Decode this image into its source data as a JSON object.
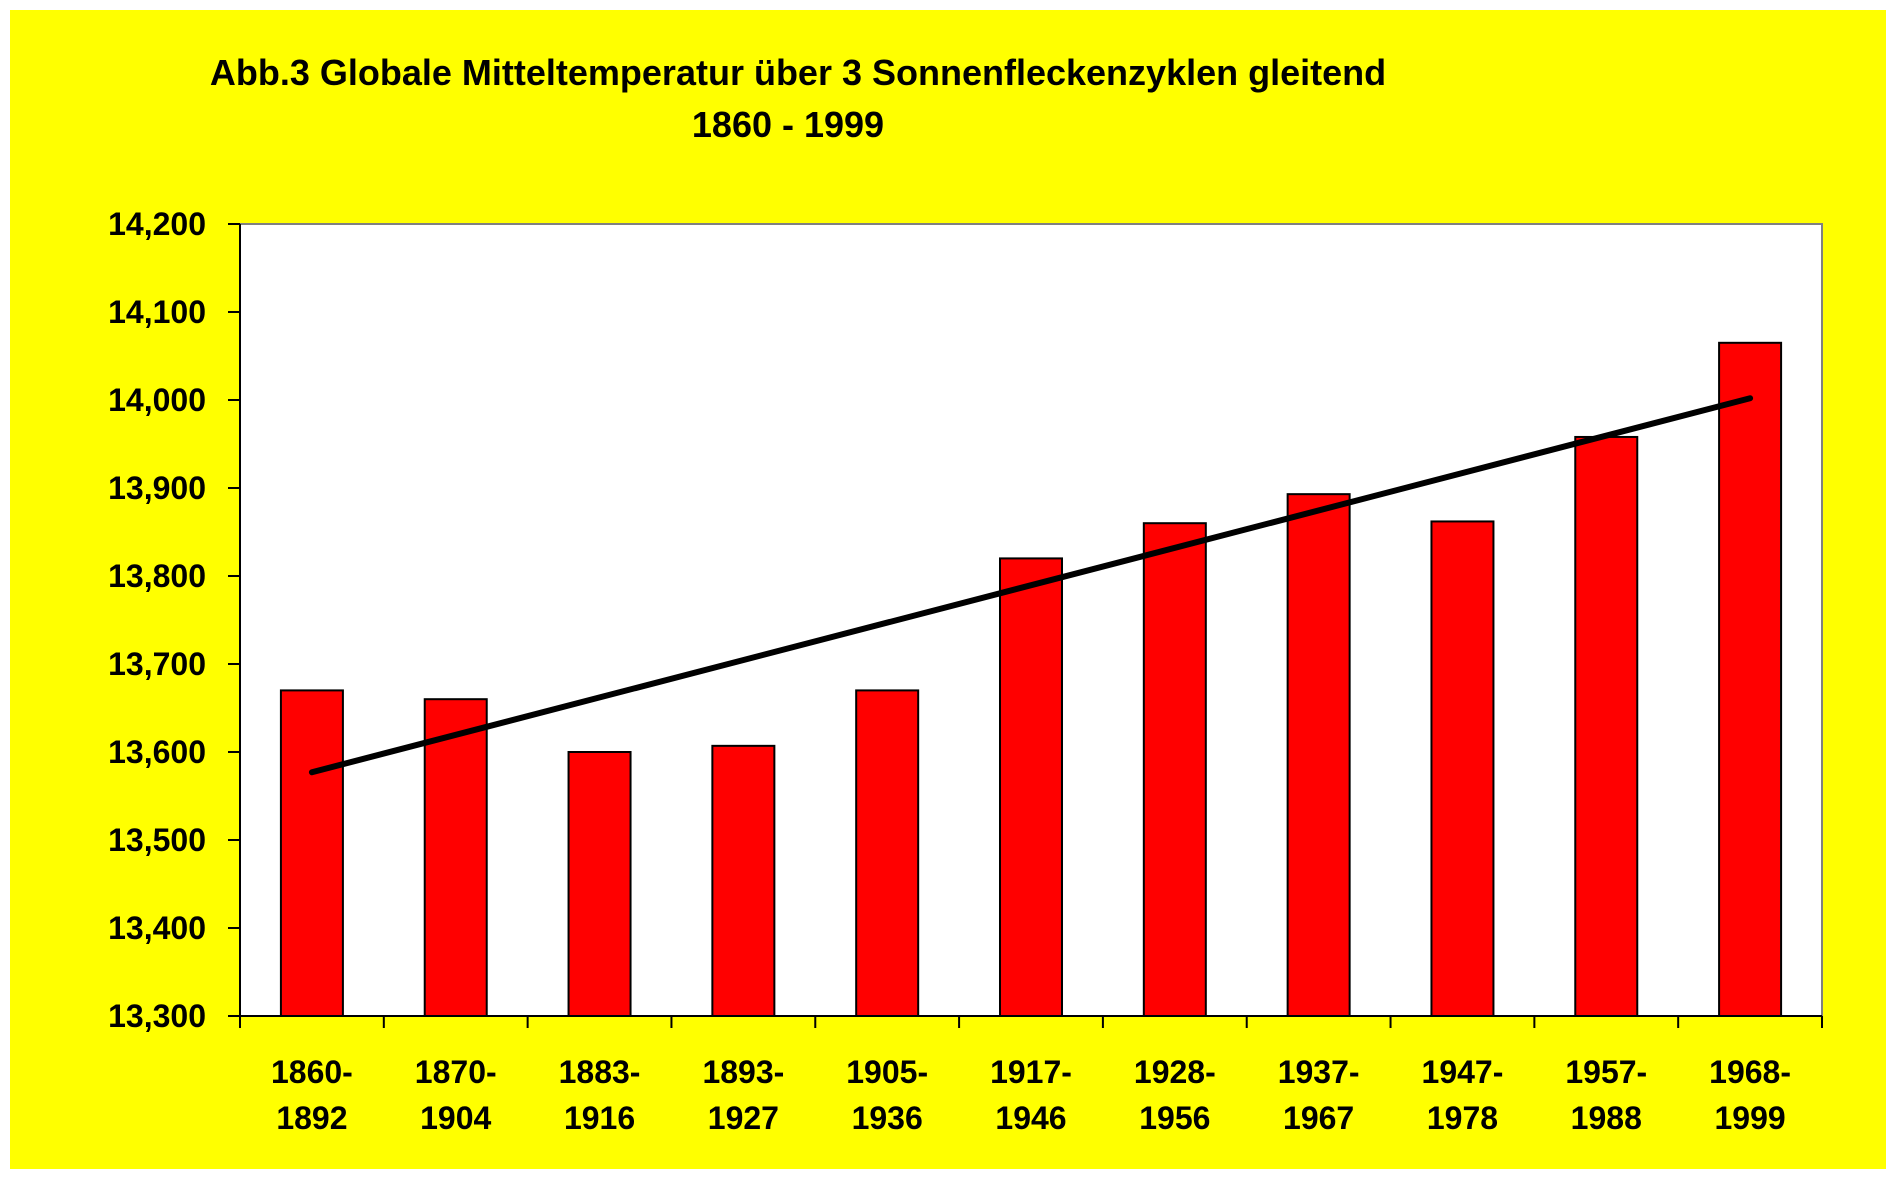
{
  "chart_data": {
    "type": "bar",
    "title": "Abb.3 Globale Mitteltemperatur über 3 Sonnenfleckenzyklen gleitend",
    "subtitle": "1860 - 1999",
    "xlabel": "",
    "ylabel": "",
    "categories": [
      [
        "1860-",
        "1892"
      ],
      [
        "1870-",
        "1904"
      ],
      [
        "1883-",
        "1916"
      ],
      [
        "1893-",
        "1927"
      ],
      [
        "1905-",
        "1936"
      ],
      [
        "1917-",
        "1946"
      ],
      [
        "1928-",
        "1956"
      ],
      [
        "1937-",
        "1967"
      ],
      [
        "1947-",
        "1978"
      ],
      [
        "1957-",
        "1988"
      ],
      [
        "1968-",
        "1999"
      ]
    ],
    "values": [
      13.67,
      13.66,
      13.6,
      13.607,
      13.67,
      13.82,
      13.86,
      13.893,
      13.862,
      13.958,
      14.065
    ],
    "trendline": {
      "start": 13.577,
      "end": 14.002
    },
    "ylim": [
      13.3,
      14.2
    ],
    "yticks": [
      13.3,
      13.4,
      13.5,
      13.6,
      13.7,
      13.8,
      13.9,
      14.0,
      14.1,
      14.2
    ],
    "ytick_labels": [
      "13,300",
      "13,400",
      "13,500",
      "13,600",
      "13,700",
      "13,800",
      "13,900",
      "14,000",
      "14,100",
      "14,200"
    ],
    "grid": false,
    "legend": "none",
    "colors": {
      "background": "#ffff00",
      "plot_area": "#ffffff",
      "bar_fill": "#ff0000",
      "bar_stroke": "#000000",
      "trendline": "#000000"
    }
  }
}
